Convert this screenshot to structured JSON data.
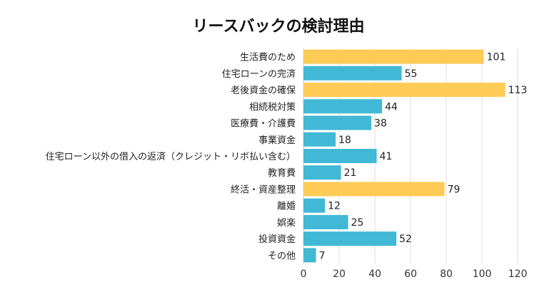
{
  "chart_data": {
    "type": "bar",
    "orientation": "horizontal",
    "title": "リースバックの検討理由",
    "xlabel": "",
    "ylabel": "",
    "xlim": [
      0,
      120
    ],
    "xticks": [
      0,
      20,
      40,
      60,
      80,
      100,
      120
    ],
    "grid": true,
    "legend": "none",
    "categories": [
      "生活費のため",
      "住宅ローンの完済",
      "老後資金の確保",
      "相続税対策",
      "医療費・介護費",
      "事業資金",
      "住宅ローン以外の借入の返済（クレジット・リボ払い含む）",
      "教育費",
      "終活・資産整理",
      "離婚",
      "娯楽",
      "投資資金",
      "その他"
    ],
    "values": [
      101,
      55,
      113,
      44,
      38,
      18,
      41,
      21,
      79,
      12,
      25,
      52,
      7
    ],
    "highlighted": [
      true,
      false,
      true,
      false,
      false,
      false,
      false,
      false,
      true,
      false,
      false,
      false,
      false
    ],
    "colors": {
      "highlight": "#FFCB57",
      "default": "#41B8D5",
      "grid": "#DDDDDD"
    }
  }
}
